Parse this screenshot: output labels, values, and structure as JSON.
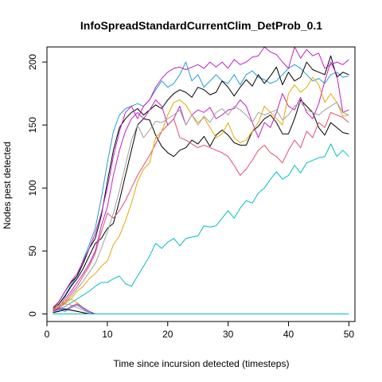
{
  "chart_data": {
    "type": "line",
    "title": "InfoSpreadStandardCurrentClim_DetProb_0.1",
    "xlabel": "Time since incursion detected (timesteps)",
    "ylabel": "Nodes pest detected",
    "xlim": [
      0,
      51
    ],
    "ylim": [
      -6,
      212
    ],
    "x_ticks": [
      0,
      10,
      20,
      30,
      40,
      50
    ],
    "y_ticks": [
      0,
      50,
      100,
      150,
      200
    ],
    "grid": false,
    "legend": "none",
    "series": [
      {
        "color": "#00BFC4",
        "x": [
          1,
          2,
          3,
          4,
          5,
          6,
          7,
          8,
          9,
          10,
          11,
          12,
          13,
          14,
          15,
          16,
          17,
          18,
          19,
          20,
          21,
          22,
          23,
          24,
          25,
          26,
          27,
          28,
          29,
          30,
          31,
          32,
          33,
          34,
          35,
          36,
          37,
          38,
          39,
          40,
          41,
          42,
          43,
          44,
          45,
          46,
          47,
          48,
          49,
          50
        ],
        "values": [
          2,
          4,
          6,
          9,
          12,
          15,
          18,
          22,
          25,
          25,
          28,
          30,
          24,
          22,
          30,
          38,
          46,
          56,
          52,
          57,
          60,
          54,
          60,
          61,
          62,
          70,
          69,
          70,
          76,
          82,
          76,
          84,
          90,
          88,
          96,
          100,
          107,
          113,
          107,
          110,
          118,
          112,
          120,
          122,
          124,
          125,
          135,
          125,
          130,
          125
        ]
      },
      {
        "color": "#1F9DD9",
        "x": [
          1,
          2,
          3,
          4,
          5,
          6,
          7,
          8,
          9,
          10,
          11,
          12,
          13,
          14,
          15,
          16,
          17,
          18,
          19,
          20,
          21,
          22,
          23,
          24,
          25,
          26,
          27,
          28,
          29,
          30,
          31,
          32,
          33,
          34,
          35,
          36,
          37,
          38,
          39,
          40,
          41,
          42,
          43,
          44,
          45,
          46,
          47,
          48,
          49,
          50
        ],
        "values": [
          3,
          8,
          15,
          23,
          30,
          43,
          55,
          68,
          92,
          120,
          145,
          158,
          163,
          165,
          167,
          165,
          170,
          178,
          185,
          180,
          183,
          190,
          200,
          185,
          190,
          180,
          185,
          190,
          185,
          183,
          190,
          182,
          190,
          193,
          188,
          186,
          183,
          185,
          190,
          195,
          198,
          195,
          190,
          185,
          187,
          183,
          190,
          192,
          188,
          189
        ]
      },
      {
        "color": "#000000",
        "x": [
          1,
          2,
          3,
          4,
          5,
          6,
          7,
          8,
          9,
          10,
          11,
          12,
          13,
          14,
          15,
          16,
          17,
          18,
          19,
          20,
          21,
          22,
          23,
          24,
          25,
          26,
          27,
          28,
          29,
          30,
          31,
          32,
          33,
          34,
          35,
          36,
          37,
          38,
          39,
          40,
          41,
          42,
          43,
          44,
          45,
          46,
          47,
          48,
          49,
          50
        ],
        "values": [
          4,
          10,
          18,
          25,
          30,
          40,
          52,
          60,
          78,
          105,
          130,
          148,
          155,
          160,
          163,
          158,
          162,
          166,
          163,
          170,
          175,
          178,
          176,
          172,
          180,
          178,
          174,
          176,
          185,
          180,
          173,
          180,
          186,
          181,
          190,
          183,
          189,
          196,
          182,
          192,
          185,
          188,
          200,
          194,
          192,
          190,
          205,
          188,
          192,
          190
        ]
      },
      {
        "color": "#000000",
        "x": [
          1,
          2,
          3,
          4,
          5,
          6,
          7,
          8,
          9,
          10,
          11,
          12,
          13,
          14,
          15,
          16,
          17,
          18,
          19,
          20,
          21,
          22,
          23,
          24,
          25,
          26,
          27,
          28,
          29,
          30,
          31,
          32,
          33,
          34,
          35,
          36,
          37,
          38,
          39,
          40,
          41,
          42,
          43,
          44,
          45,
          46,
          47,
          48,
          49,
          50
        ],
        "values": [
          3,
          8,
          14,
          22,
          28,
          36,
          46,
          56,
          60,
          68,
          72,
          90,
          110,
          130,
          150,
          155,
          154,
          142,
          133,
          128,
          125,
          130,
          132,
          138,
          135,
          141,
          133,
          142,
          146,
          142,
          136,
          134,
          134,
          145,
          149,
          155,
          158,
          152,
          143,
          143,
          155,
          170,
          165,
          160,
          148,
          142,
          152,
          148,
          144,
          143
        ]
      },
      {
        "color": "#C020C0",
        "x": [
          1,
          2,
          3,
          4,
          5,
          6,
          7,
          8,
          9,
          10,
          11,
          12,
          13,
          14,
          15,
          16,
          17,
          18,
          19,
          20,
          21,
          22,
          23,
          24,
          25,
          26,
          27,
          28,
          29,
          30,
          31,
          32,
          33,
          34,
          35,
          36,
          37,
          38,
          39,
          40,
          41,
          42,
          43,
          44,
          45,
          46,
          47,
          48,
          49,
          50
        ],
        "values": [
          5,
          10,
          18,
          26,
          32,
          42,
          52,
          64,
          80,
          100,
          125,
          145,
          160,
          165,
          155,
          165,
          170,
          180,
          187,
          192,
          195,
          196,
          194,
          196,
          198,
          195,
          200,
          196,
          200,
          195,
          202,
          198,
          200,
          204,
          205,
          212,
          208,
          206,
          200,
          195,
          212,
          203,
          210,
          205,
          207,
          195,
          198,
          200,
          198,
          202
        ]
      },
      {
        "color": "#C020C0",
        "x": [
          1,
          2,
          3,
          4,
          5,
          6,
          7,
          8,
          9,
          10,
          11,
          12,
          13,
          14,
          15,
          16,
          17,
          18,
          19,
          20,
          21,
          22,
          23,
          24,
          25,
          26,
          27,
          28,
          29,
          30,
          31,
          32,
          33,
          34,
          35,
          36,
          37,
          38,
          39,
          40,
          41,
          42,
          43,
          44,
          45,
          46,
          47,
          48,
          49,
          50
        ],
        "values": [
          3,
          6,
          12,
          18,
          25,
          32,
          40,
          50,
          70,
          85,
          110,
          130,
          145,
          155,
          160,
          155,
          162,
          170,
          165,
          150,
          155,
          165,
          150,
          158,
          162,
          160,
          164,
          155,
          158,
          162,
          163,
          170,
          165,
          152,
          140,
          152,
          148,
          160,
          175,
          165,
          162,
          172,
          160,
          155,
          167,
          185,
          200,
          190,
          160,
          162
        ]
      },
      {
        "color": "#E05070",
        "x": [
          1,
          2,
          3,
          4,
          5,
          6,
          7,
          8,
          9,
          10,
          11,
          12,
          13,
          14,
          15,
          16,
          17,
          18,
          19,
          20,
          21,
          22,
          23,
          24,
          25,
          26,
          27,
          28,
          29,
          30,
          31,
          32,
          33,
          34,
          35,
          36,
          37,
          38,
          39,
          40,
          41,
          42,
          43,
          44,
          45,
          46,
          47,
          48,
          49,
          50
        ],
        "values": [
          2,
          5,
          10,
          16,
          22,
          30,
          38,
          48,
          65,
          80,
          76,
          82,
          90,
          100,
          110,
          118,
          126,
          135,
          145,
          150,
          155,
          140,
          138,
          135,
          132,
          134,
          132,
          130,
          128,
          125,
          118,
          110,
          115,
          122,
          130,
          134,
          128,
          125,
          120,
          130,
          138,
          132,
          145,
          140,
          152,
          148,
          160,
          158,
          156,
          152
        ]
      },
      {
        "color": "#E5A800",
        "x": [
          1,
          2,
          3,
          4,
          5,
          6,
          7,
          8,
          9,
          10,
          11,
          12,
          13,
          14,
          15,
          16,
          17,
          18,
          19,
          20,
          21,
          22,
          23,
          24,
          25,
          26,
          27,
          28,
          29,
          30,
          31,
          32,
          33,
          34,
          35,
          36,
          37,
          38,
          39,
          40,
          41,
          42,
          43,
          44,
          45,
          46,
          47,
          48,
          49,
          50
        ],
        "values": [
          2,
          5,
          8,
          12,
          18,
          22,
          28,
          32,
          38,
          42,
          55,
          62,
          74,
          88,
          105,
          115,
          120,
          140,
          145,
          158,
          168,
          170,
          166,
          158,
          152,
          156,
          148,
          140,
          143,
          152,
          140,
          136,
          138,
          145,
          152,
          165,
          160,
          155,
          150,
          175,
          182,
          176,
          180,
          188,
          182,
          168,
          175,
          168,
          157,
          158
        ]
      },
      {
        "color": "#A0A0A0",
        "x": [
          1,
          2,
          3,
          4,
          5,
          6,
          7,
          8,
          9,
          10,
          11,
          12,
          13,
          14,
          15,
          16,
          17,
          18,
          19,
          20,
          21,
          22,
          23,
          24,
          25,
          26,
          27,
          28,
          29,
          30,
          31,
          32,
          33,
          34,
          35,
          36,
          37,
          38,
          39,
          40,
          41,
          42,
          43,
          44,
          45,
          46,
          47,
          48,
          49,
          50
        ],
        "values": [
          2,
          5,
          9,
          14,
          20,
          26,
          33,
          40,
          52,
          65,
          80,
          98,
          118,
          138,
          150,
          140,
          146,
          153,
          152,
          155,
          158,
          162,
          150,
          158,
          150,
          157,
          152,
          160,
          163,
          158,
          165,
          162,
          158,
          152,
          160,
          158,
          160,
          162,
          154,
          158,
          165,
          168,
          162,
          160,
          158,
          162,
          165,
          168,
          160,
          158
        ]
      },
      {
        "color": "#F08080",
        "x": [
          1,
          2,
          3,
          4,
          5,
          6,
          7,
          8,
          9,
          10
        ],
        "values": [
          3,
          6,
          8,
          7,
          5,
          3,
          1,
          0,
          0,
          0
        ]
      },
      {
        "color": "#8E44AD",
        "x": [
          1,
          2,
          3,
          4,
          5,
          6,
          7,
          8,
          9,
          10
        ],
        "values": [
          2,
          5,
          4,
          3,
          2,
          1,
          0,
          0,
          0,
          0
        ]
      },
      {
        "color": "#E5A800",
        "x": [
          1,
          2,
          3,
          4,
          5,
          6,
          7,
          8,
          9,
          10
        ],
        "values": [
          4,
          7,
          10,
          12,
          9,
          5,
          2,
          0,
          0,
          0
        ]
      },
      {
        "color": "#1F9DD9",
        "x": [
          1,
          2,
          3,
          4,
          5,
          6,
          7,
          8,
          9,
          10
        ],
        "values": [
          1,
          3,
          2,
          5,
          7,
          4,
          1,
          0,
          0,
          0
        ]
      },
      {
        "color": "#C020C0",
        "x": [
          1,
          2,
          3,
          4,
          5,
          6,
          7,
          8,
          9,
          10
        ],
        "values": [
          2,
          4,
          3,
          6,
          8,
          5,
          2,
          0,
          0,
          0
        ]
      },
      {
        "color": "#000000",
        "x": [
          1,
          2,
          3,
          4,
          5,
          6,
          7,
          8,
          9,
          10
        ],
        "values": [
          1,
          2,
          4,
          3,
          2,
          1,
          0,
          0,
          0,
          0
        ]
      },
      {
        "color": "#00BFC4",
        "x": [
          1,
          5,
          10,
          15,
          20,
          25,
          30,
          35,
          40,
          45,
          50
        ],
        "values": [
          0,
          0,
          0,
          0,
          0,
          0,
          0,
          0,
          0,
          0,
          0
        ]
      }
    ]
  }
}
